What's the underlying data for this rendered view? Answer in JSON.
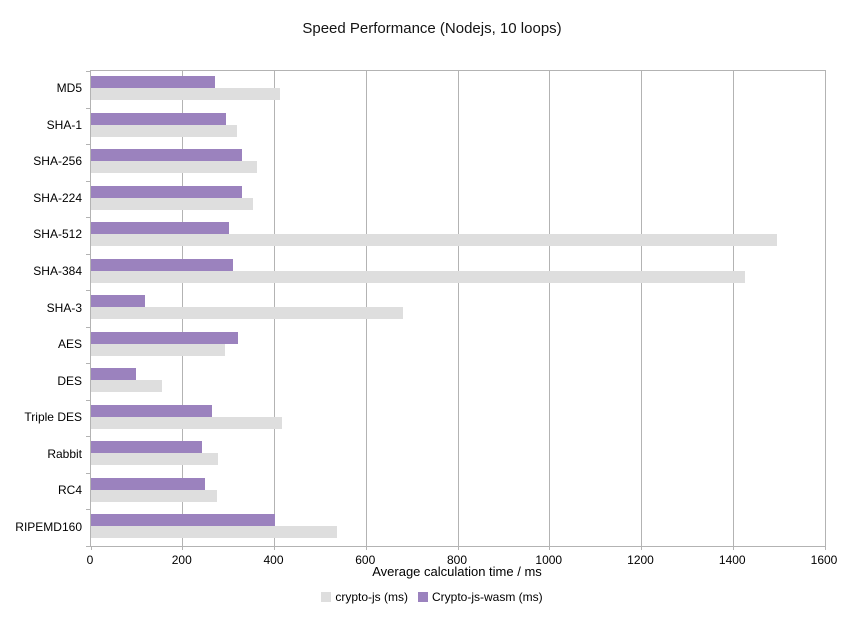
{
  "title": "Speed Performance (Nodejs, 10 loops)",
  "xlabel": "Average calculation time / ms",
  "colors": {
    "crypto_js": "#dedede",
    "crypto_js_wasm": "#9b82be",
    "grid": "#b3b3b3",
    "axis": "#b3b3b3",
    "text": "#000000"
  },
  "legend": [
    {
      "label": "crypto-js (ms)",
      "color": "#dedede"
    },
    {
      "label": "Crypto-js-wasm (ms)",
      "color": "#9b82be"
    }
  ],
  "chart_data": {
    "type": "bar",
    "orientation": "horizontal",
    "title": "Speed Performance (Nodejs, 10 loops)",
    "xlabel": "Average calculation time / ms",
    "ylabel": "",
    "xlim": [
      0,
      1600
    ],
    "xticks": [
      0,
      200,
      400,
      600,
      800,
      1000,
      1200,
      1400,
      1600
    ],
    "grid": true,
    "legend_position": "bottom",
    "categories": [
      "MD5",
      "SHA-1",
      "SHA-256",
      "SHA-224",
      "SHA-512",
      "SHA-384",
      "SHA-3",
      "AES",
      "DES",
      "Triple DES",
      "Rabbit",
      "RC4",
      "RIPEMD160"
    ],
    "series": [
      {
        "name": "crypto-js (ms)",
        "color": "#dedede",
        "values": [
          413,
          318,
          361,
          354,
          1495,
          1425,
          680,
          292,
          155,
          416,
          277,
          275,
          536
        ]
      },
      {
        "name": "Crypto-js-wasm (ms)",
        "color": "#9b82be",
        "values": [
          270,
          295,
          330,
          329,
          300,
          309,
          118,
          320,
          98,
          264,
          242,
          249,
          400
        ]
      }
    ]
  }
}
